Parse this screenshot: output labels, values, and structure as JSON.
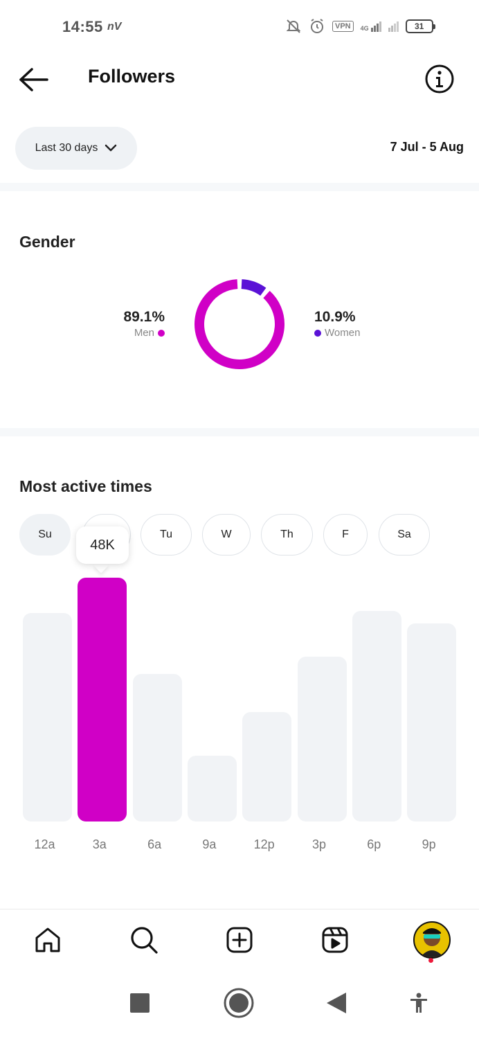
{
  "status_bar": {
    "time": "14:55",
    "carrier": "nV",
    "vpn": "VPN",
    "network": "4G",
    "battery": "31"
  },
  "header": {
    "title": "Followers",
    "back_icon": "arrow-left-icon",
    "info_icon": "info-icon"
  },
  "filters": {
    "range_label": "Last 30 days",
    "date_range": "7 Jul - 5 Aug"
  },
  "gender": {
    "title": "Gender",
    "men": {
      "percent": "89.1%",
      "label": "Men",
      "value": 89.1,
      "color": "#d000c6"
    },
    "women": {
      "percent": "10.9%",
      "label": "Women",
      "value": 10.9,
      "color": "#5a12d6"
    }
  },
  "active_times": {
    "title": "Most active times",
    "days": [
      "Su",
      "M",
      "Tu",
      "W",
      "Th",
      "F",
      "Sa"
    ],
    "selected_day": "Su",
    "tooltip": "48K",
    "colors": {
      "active": "#d000c6",
      "inactive": "#f1f3f6"
    }
  },
  "chart_data": {
    "type": "bar",
    "categories": [
      "12a",
      "3a",
      "6a",
      "9a",
      "12p",
      "3p",
      "6p",
      "9p"
    ],
    "values": [
      41,
      48,
      29,
      13,
      21.5,
      32.5,
      41.5,
      39
    ],
    "highlighted_index": 1,
    "highlighted_label": "48K",
    "ylim": [
      0,
      48
    ],
    "grid": false,
    "title": "",
    "xlabel": "",
    "ylabel": ""
  },
  "bottom_nav": {
    "items": [
      "home-icon",
      "search-icon",
      "create-icon",
      "reels-icon",
      "profile-avatar"
    ]
  },
  "system_nav": {
    "items": [
      "recents-icon",
      "home-circle-icon",
      "back-triangle-icon",
      "accessibility-icon"
    ]
  }
}
